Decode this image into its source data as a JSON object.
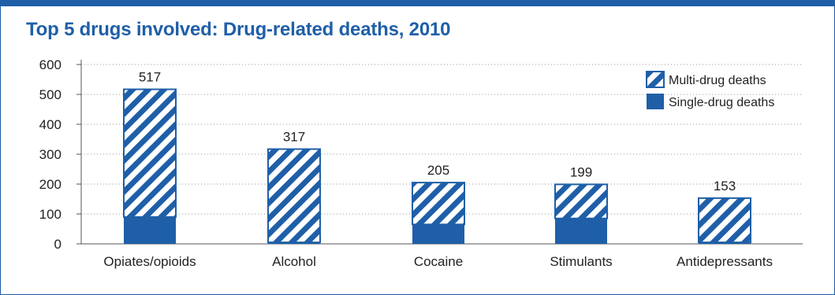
{
  "title": "Top 5 drugs involved: Drug-related deaths, 2010",
  "colors": {
    "frame": "#1f5fa8",
    "bar": "#1f5fa8",
    "stripe_bg": "#ffffff",
    "grid": "#999999"
  },
  "chart_data": {
    "type": "bar",
    "stacked": true,
    "title": "Top 5 drugs involved: Drug-related deaths, 2010",
    "categories": [
      "Opiates/opioids",
      "Alcohol",
      "Cocaine",
      "Stimulants",
      "Antidepressants"
    ],
    "series": [
      {
        "name": "Single-drug deaths",
        "pattern": "solid",
        "values": [
          90,
          5,
          65,
          85,
          5
        ]
      },
      {
        "name": "Multi-drug deaths",
        "pattern": "diagonal-stripes",
        "values": [
          427,
          312,
          140,
          114,
          148
        ]
      }
    ],
    "totals": [
      517,
      317,
      205,
      199,
      153
    ],
    "yticks": [
      0,
      100,
      200,
      300,
      400,
      500,
      600
    ],
    "ylim": [
      0,
      600
    ],
    "grid": "dotted-horizontal",
    "legend_position": "top-right",
    "legend": [
      "Multi-drug deaths",
      "Single-drug deaths"
    ]
  }
}
